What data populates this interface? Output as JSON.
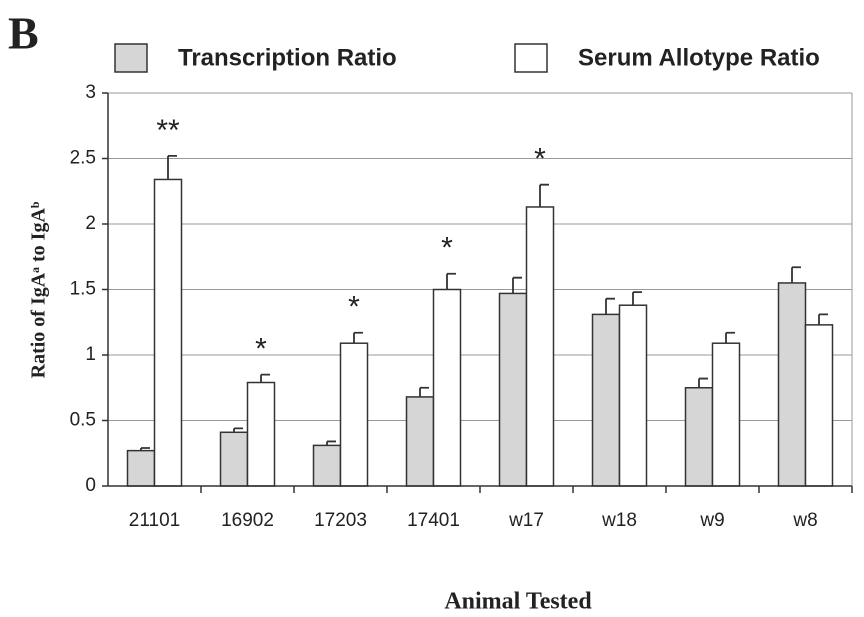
{
  "chart_data": {
    "type": "bar",
    "panel_label": "B",
    "xlabel": "Animal Tested",
    "ylabel": "Ratio of IgAᵃ to IgAᵇ",
    "categories": [
      "21101",
      "16902",
      "17203",
      "17401",
      "w17",
      "w18",
      "w9",
      "w8"
    ],
    "series": [
      {
        "name": "Transcription Ratio",
        "color": "#d6d6d6",
        "values": [
          0.27,
          0.41,
          0.31,
          0.68,
          1.47,
          1.31,
          0.75,
          1.55
        ],
        "errors": [
          0.02,
          0.03,
          0.03,
          0.07,
          0.12,
          0.12,
          0.07,
          0.12
        ]
      },
      {
        "name": "Serum Allotype Ratio",
        "color": "#ffffff",
        "values": [
          2.34,
          0.79,
          1.09,
          1.5,
          2.13,
          1.38,
          1.09,
          1.23
        ],
        "errors": [
          0.18,
          0.06,
          0.08,
          0.12,
          0.17,
          0.1,
          0.08,
          0.08
        ]
      }
    ],
    "annotations": [
      {
        "text": "**",
        "category": "21101"
      },
      {
        "text": "*",
        "category": "16902"
      },
      {
        "text": "*",
        "category": "17203"
      },
      {
        "text": "*",
        "category": "17401"
      },
      {
        "text": "*",
        "category": "w17"
      }
    ],
    "ylim": [
      0,
      3
    ],
    "yticks": [
      0,
      0.5,
      1,
      1.5,
      2,
      2.5,
      3
    ],
    "grid": true,
    "legend": "top"
  }
}
